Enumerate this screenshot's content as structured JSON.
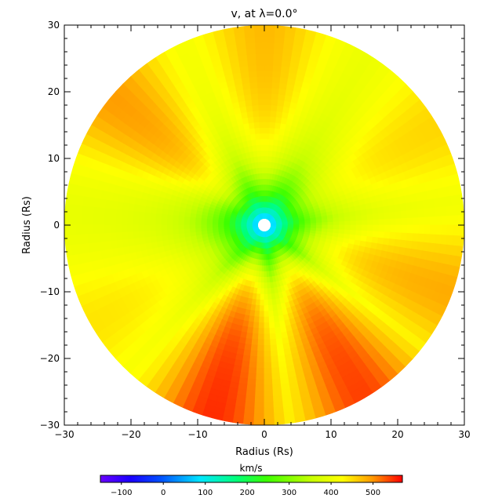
{
  "chart_data": {
    "type": "heatmap",
    "title": "v, at λ=0.0°",
    "xlabel": "Radius (Rs)",
    "ylabel": "Radius (Rs)",
    "xlim": [
      -30,
      30
    ],
    "ylim": [
      -30,
      30
    ],
    "x_ticks": [
      -30,
      -20,
      -10,
      0,
      10,
      20,
      30
    ],
    "y_ticks": [
      -30,
      -20,
      -10,
      0,
      10,
      20,
      30
    ],
    "disk_radius": 30,
    "inner_radius": 1,
    "colorbar": {
      "label": "km/s",
      "range": [
        -150,
        570
      ],
      "ticks": [
        -100,
        0,
        100,
        200,
        300,
        400,
        500
      ]
    },
    "velocity_profile": {
      "description_units": "km/s",
      "background": 390,
      "streamer_peaks": [
        {
          "angle_deg": 90,
          "v": 470
        },
        {
          "angle_deg": 140,
          "v": 490
        },
        {
          "angle_deg": 30,
          "v": 450
        },
        {
          "angle_deg": 210,
          "v": 440
        },
        {
          "angle_deg": 255,
          "v": 550
        },
        {
          "angle_deg": 300,
          "v": 540
        },
        {
          "angle_deg": 340,
          "v": 480
        }
      ],
      "core_velocity": 60
    }
  }
}
